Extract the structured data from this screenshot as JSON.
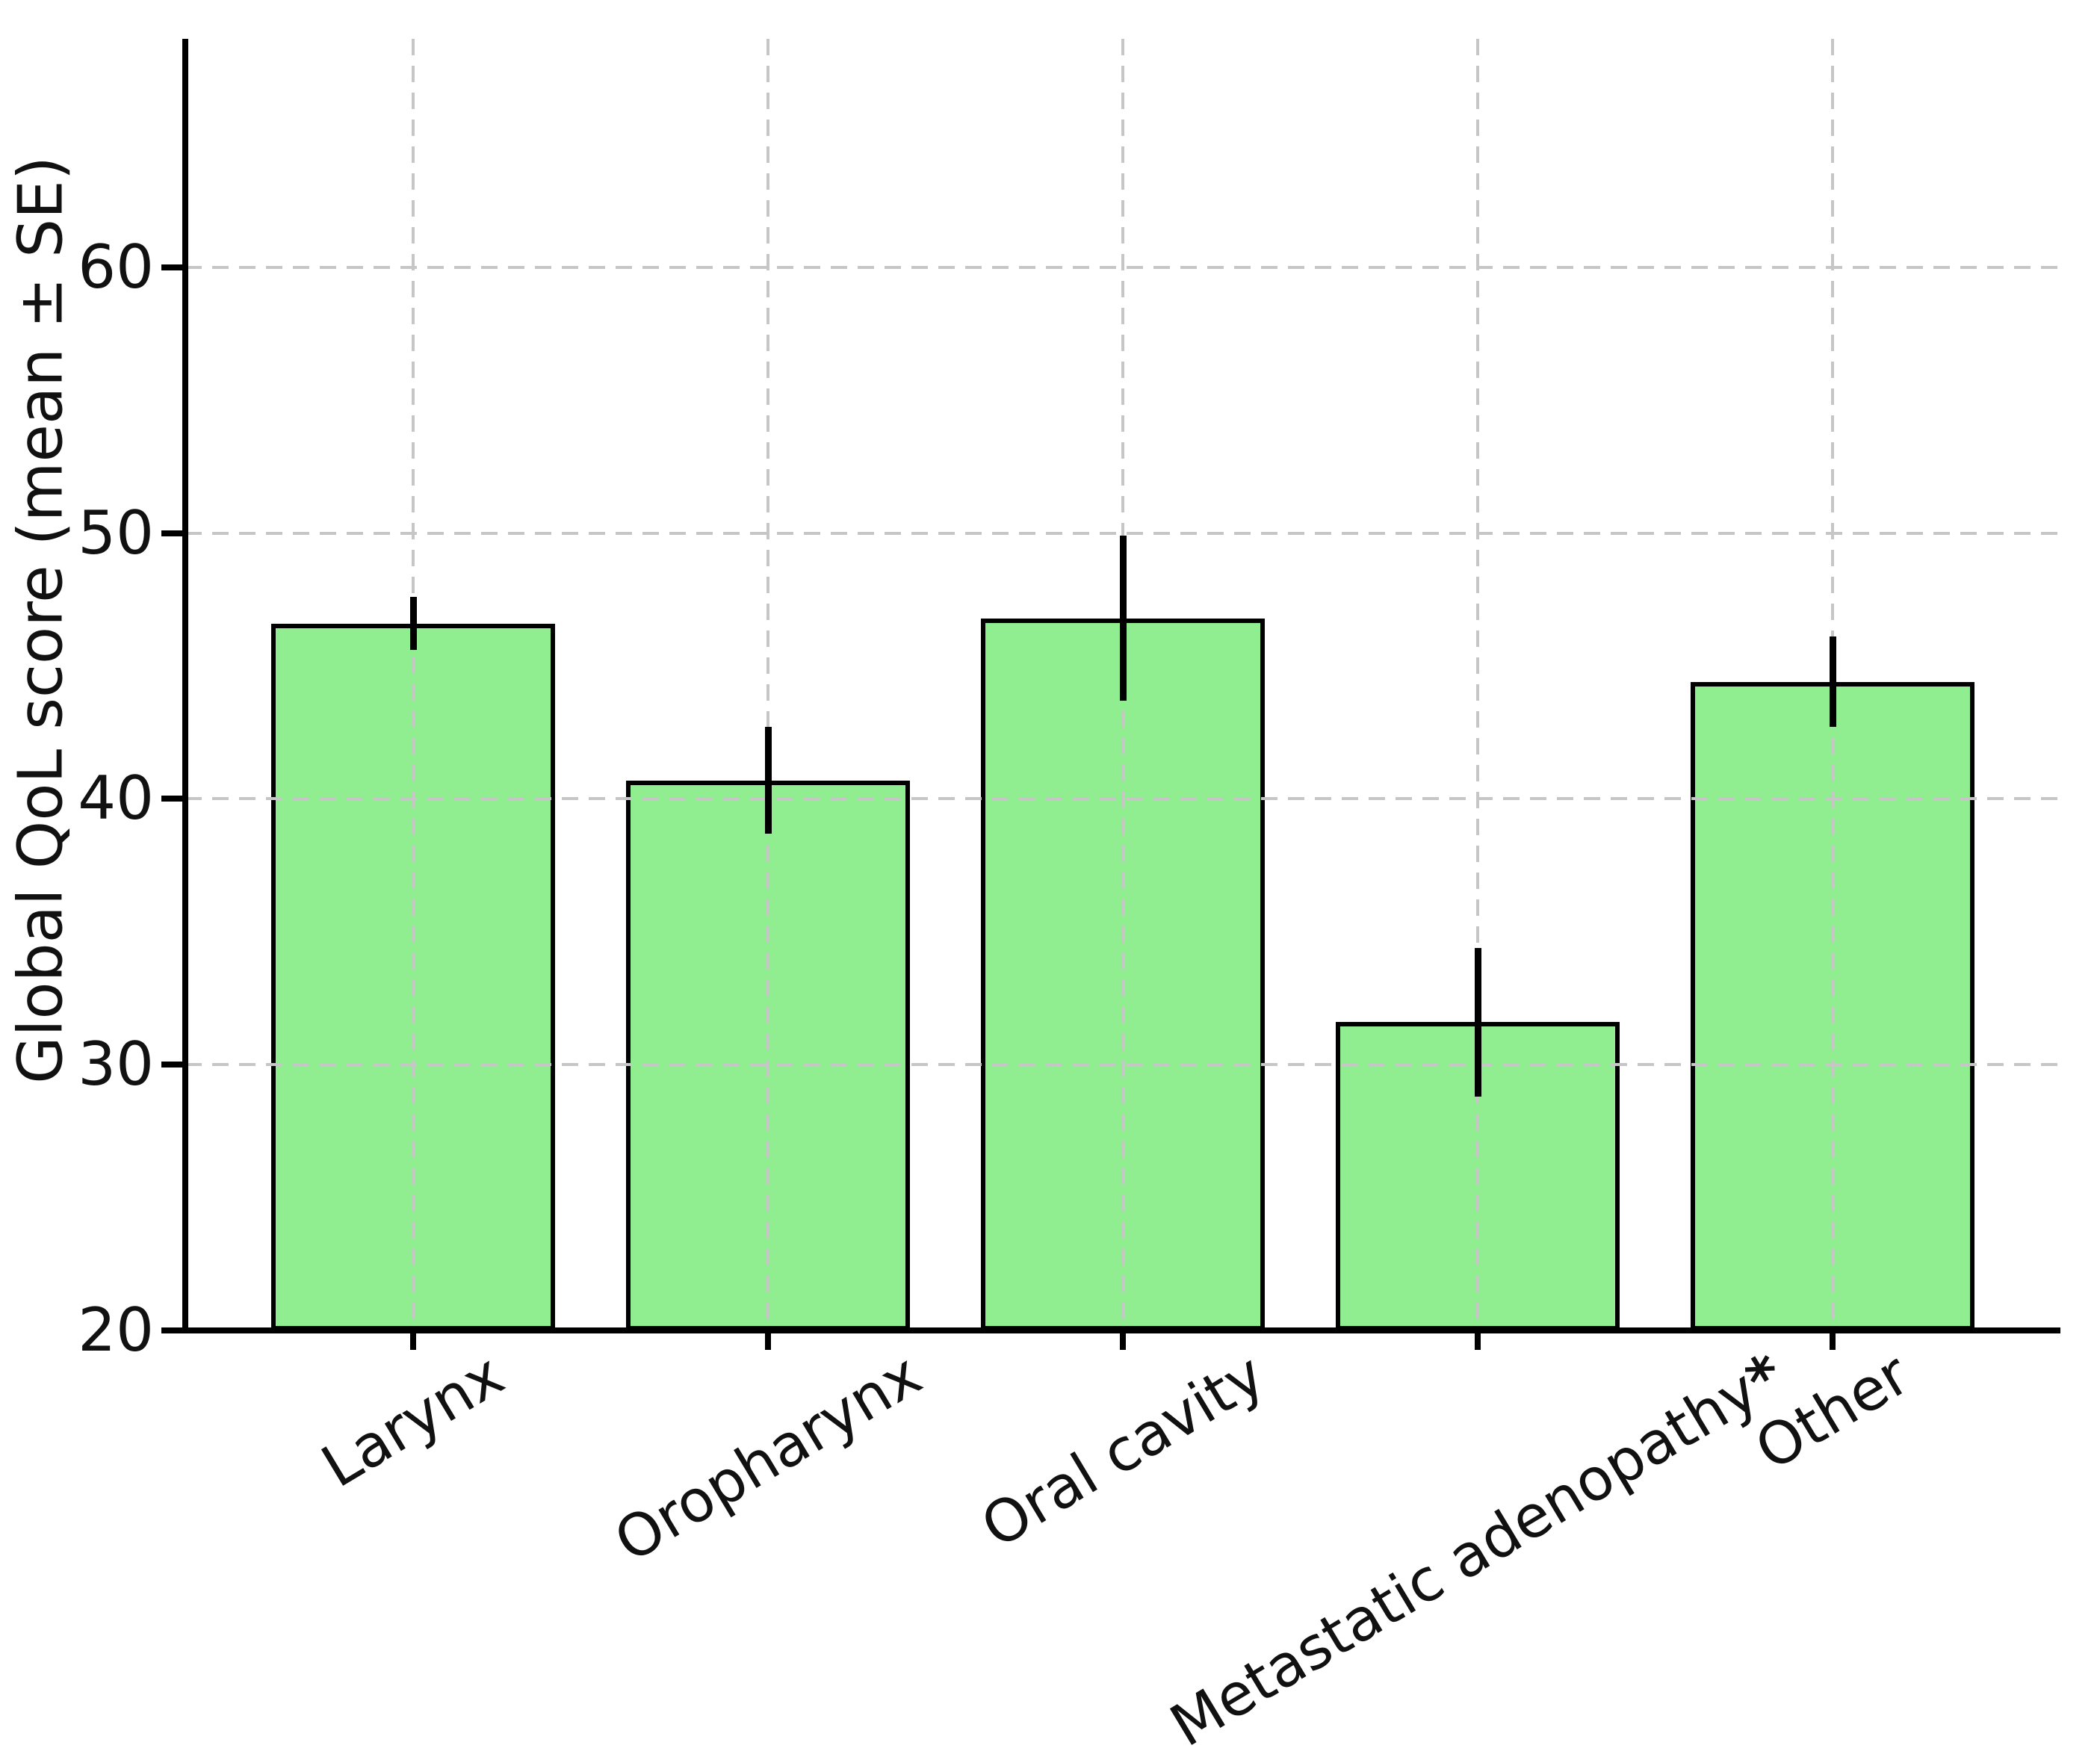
{
  "chart_data": {
    "type": "bar",
    "title": "",
    "categories": [
      "Larynx",
      "Oropharynx",
      "Oral cavity",
      "Metastatic adenopathy*",
      "Other"
    ],
    "values": [
      46.6,
      40.7,
      46.8,
      31.6,
      44.4
    ],
    "errors": [
      1.0,
      2.0,
      3.1,
      2.8,
      1.7
    ],
    "error_style": "mean ± SE, vertical line, no caps",
    "ylabel": "Global QoL score (mean ± SE)",
    "xlabel": "",
    "yticks": [
      20,
      30,
      40,
      50,
      60
    ],
    "ytick_labels": [
      "20",
      "30",
      "40",
      "50",
      "60"
    ],
    "ylim": [
      20,
      68.6
    ],
    "grid": true,
    "legend": false,
    "xtick_rotation_deg": 31,
    "significance_marker": "*",
    "significance_marker_on": "Metastatic adenopathy",
    "colors": {
      "bar_fill": "#90EE90",
      "bar_edge": "#000000",
      "error_bar": "#000000",
      "grid": "#c6c6c6",
      "axis": "#000000",
      "text": "#111111",
      "background": "#ffffff"
    }
  }
}
